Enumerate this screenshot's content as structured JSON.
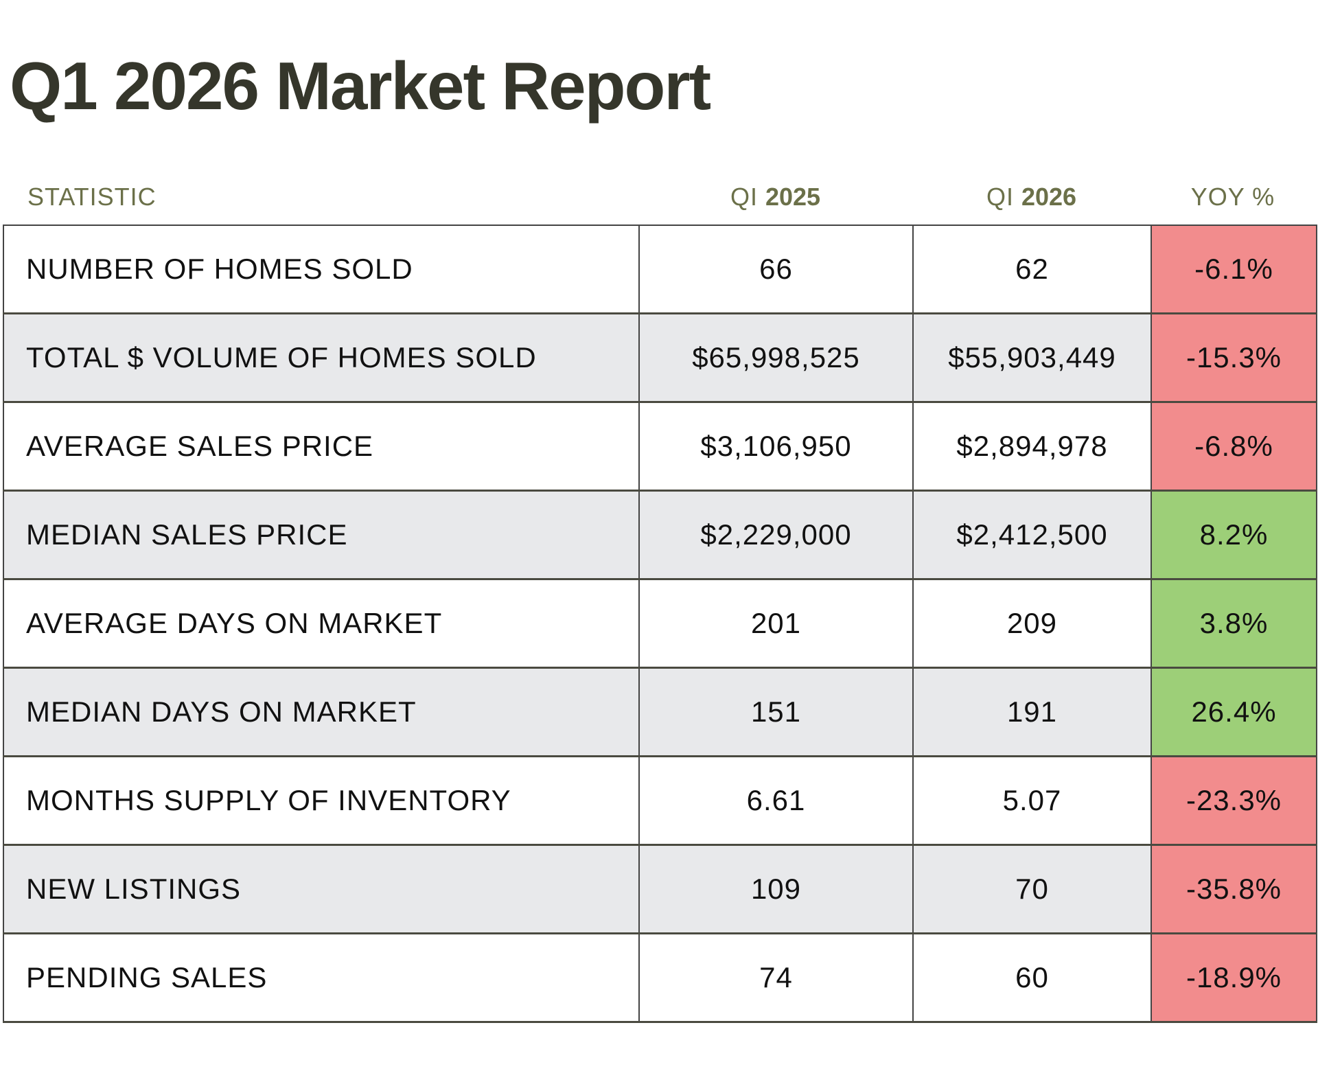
{
  "title": "Q1 2026 Market Report",
  "header": {
    "statistic": "STATISTIC",
    "q2025_prefix": "QI ",
    "q2025_year": "2025",
    "q2026_prefix": "QI ",
    "q2026_year": "2026",
    "yoy": "YOY %"
  },
  "colors": {
    "negative": "#F28C8D",
    "positive": "#9DCF78",
    "alt_row": "#E8E9EB",
    "header_text": "#6B7049",
    "title_text": "#35362B"
  },
  "rows": [
    {
      "label": "NUMBER OF HOMES SOLD",
      "q1_2025": "66",
      "q1_2026": "62",
      "yoy": "-6.1%",
      "trend": "negative"
    },
    {
      "label": "TOTAL $ VOLUME OF HOMES SOLD",
      "q1_2025": "$65,998,525",
      "q1_2026": "$55,903,449",
      "yoy": "-15.3%",
      "trend": "negative"
    },
    {
      "label": "AVERAGE SALES PRICE",
      "q1_2025": "$3,106,950",
      "q1_2026": "$2,894,978",
      "yoy": "-6.8%",
      "trend": "negative"
    },
    {
      "label": "MEDIAN SALES PRICE",
      "q1_2025": "$2,229,000",
      "q1_2026": "$2,412,500",
      "yoy": "8.2%",
      "trend": "positive"
    },
    {
      "label": "AVERAGE DAYS ON MARKET",
      "q1_2025": "201",
      "q1_2026": "209",
      "yoy": "3.8%",
      "trend": "positive"
    },
    {
      "label": "MEDIAN DAYS ON MARKET",
      "q1_2025": "151",
      "q1_2026": "191",
      "yoy": "26.4%",
      "trend": "positive"
    },
    {
      "label": "MONTHS SUPPLY OF INVENTORY",
      "q1_2025": "6.61",
      "q1_2026": "5.07",
      "yoy": "-23.3%",
      "trend": "negative"
    },
    {
      "label": "NEW LISTINGS",
      "q1_2025": "109",
      "q1_2026": "70",
      "yoy": "-35.8%",
      "trend": "negative"
    },
    {
      "label": "PENDING SALES",
      "q1_2025": "74",
      "q1_2026": "60",
      "yoy": "-18.9%",
      "trend": "negative"
    }
  ]
}
